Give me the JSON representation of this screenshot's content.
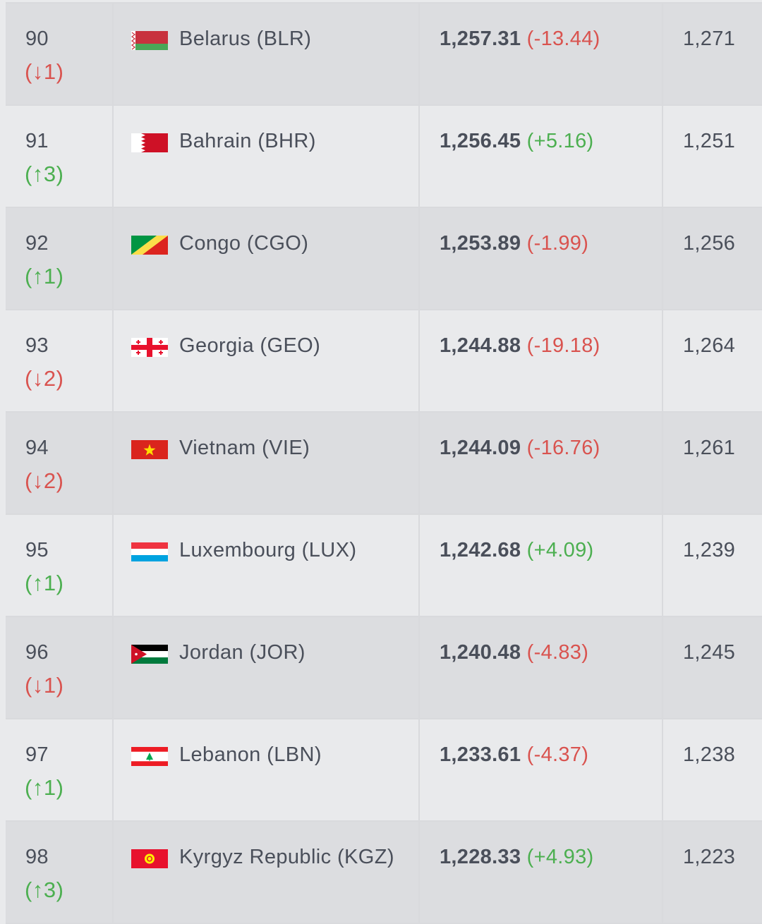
{
  "colors": {
    "up": "#4caf50",
    "down": "#d9534f",
    "text": "#4a4f5a",
    "row_dark": "#dcdde0",
    "row_light": "#e9eaec"
  },
  "rows": [
    {
      "rank": "90",
      "move": "(↓1)",
      "dir": "down",
      "flag": "flag-belarus-icon",
      "team": "Belarus (BLR)",
      "points": "1,257.31",
      "change": "(-13.44)",
      "change_dir": "down",
      "prev": "1,271"
    },
    {
      "rank": "91",
      "move": "(↑3)",
      "dir": "up",
      "flag": "flag-bahrain-icon",
      "team": "Bahrain (BHR)",
      "points": "1,256.45",
      "change": "(+5.16)",
      "change_dir": "up",
      "prev": "1,251"
    },
    {
      "rank": "92",
      "move": "(↑1)",
      "dir": "up",
      "flag": "flag-congo-icon",
      "team": "Congo (CGO)",
      "points": "1,253.89",
      "change": "(-1.99)",
      "change_dir": "down",
      "prev": "1,256"
    },
    {
      "rank": "93",
      "move": "(↓2)",
      "dir": "down",
      "flag": "flag-georgia-icon",
      "team": "Georgia (GEO)",
      "points": "1,244.88",
      "change": "(-19.18)",
      "change_dir": "down",
      "prev": "1,264"
    },
    {
      "rank": "94",
      "move": "(↓2)",
      "dir": "down",
      "flag": "flag-vietnam-icon",
      "team": "Vietnam (VIE)",
      "points": "1,244.09",
      "change": "(-16.76)",
      "change_dir": "down",
      "prev": "1,261"
    },
    {
      "rank": "95",
      "move": "(↑1)",
      "dir": "up",
      "flag": "flag-luxembourg-icon",
      "team": "Luxembourg (LUX)",
      "points": "1,242.68",
      "change": "(+4.09)",
      "change_dir": "up",
      "prev": "1,239"
    },
    {
      "rank": "96",
      "move": "(↓1)",
      "dir": "down",
      "flag": "flag-jordan-icon",
      "team": "Jordan (JOR)",
      "points": "1,240.48",
      "change": "(-4.83)",
      "change_dir": "down",
      "prev": "1,245"
    },
    {
      "rank": "97",
      "move": "(↑1)",
      "dir": "up",
      "flag": "flag-lebanon-icon",
      "team": "Lebanon (LBN)",
      "points": "1,233.61",
      "change": "(-4.37)",
      "change_dir": "down",
      "prev": "1,238"
    },
    {
      "rank": "98",
      "move": "(↑3)",
      "dir": "up",
      "flag": "flag-kyrgyz-icon",
      "team": "Kyrgyz Republic (KGZ)",
      "points": "1,228.33",
      "change": "(+4.93)",
      "change_dir": "up",
      "prev": "1,223"
    }
  ]
}
